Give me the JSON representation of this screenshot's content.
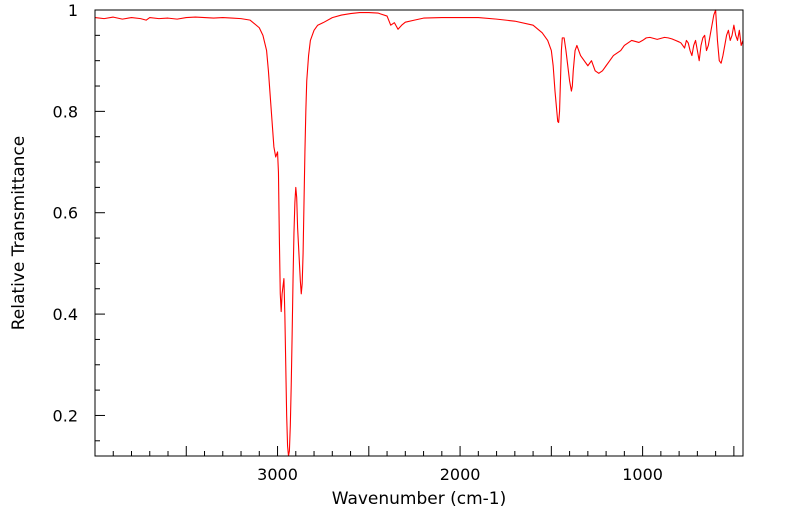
{
  "chart_data": {
    "type": "line",
    "title": "",
    "xlabel": "Wavenumber (cm-1)",
    "ylabel": "Relative Transmittance",
    "xlim": [
      4000,
      450
    ],
    "ylim": [
      0.12,
      1.0
    ],
    "x_ticks": [
      {
        "value": 3000,
        "label": "3000"
      },
      {
        "value": 2000,
        "label": "2000"
      },
      {
        "value": 1000,
        "label": "1000"
      }
    ],
    "y_ticks": [
      {
        "value": 1.0,
        "label": "1"
      },
      {
        "value": 0.8,
        "label": "0.8"
      },
      {
        "value": 0.6,
        "label": "0.6"
      },
      {
        "value": 0.4,
        "label": "0.4"
      },
      {
        "value": 0.2,
        "label": "0.2"
      }
    ],
    "grid": false,
    "legend": "none",
    "series": [
      {
        "color": "#ff0000",
        "x": [
          4000,
          3950,
          3900,
          3850,
          3800,
          3750,
          3720,
          3700,
          3650,
          3600,
          3550,
          3500,
          3450,
          3400,
          3350,
          3300,
          3250,
          3200,
          3150,
          3100,
          3080,
          3060,
          3050,
          3040,
          3030,
          3020,
          3010,
          3000,
          2995,
          2990,
          2985,
          2980,
          2975,
          2965,
          2960,
          2955,
          2950,
          2945,
          2940,
          2935,
          2930,
          2925,
          2920,
          2915,
          2910,
          2905,
          2900,
          2895,
          2890,
          2880,
          2875,
          2870,
          2865,
          2860,
          2855,
          2850,
          2845,
          2840,
          2830,
          2820,
          2800,
          2780,
          2750,
          2700,
          2650,
          2600,
          2550,
          2500,
          2450,
          2400,
          2380,
          2360,
          2340,
          2320,
          2300,
          2250,
          2200,
          2100,
          2000,
          1900,
          1800,
          1700,
          1600,
          1550,
          1520,
          1500,
          1490,
          1480,
          1470,
          1465,
          1460,
          1455,
          1450,
          1445,
          1440,
          1430,
          1420,
          1410,
          1400,
          1390,
          1385,
          1380,
          1375,
          1370,
          1360,
          1350,
          1340,
          1320,
          1300,
          1280,
          1260,
          1240,
          1220,
          1210,
          1200,
          1180,
          1160,
          1140,
          1120,
          1100,
          1080,
          1060,
          1040,
          1020,
          1000,
          980,
          960,
          940,
          920,
          900,
          880,
          860,
          840,
          820,
          800,
          790,
          780,
          770,
          760,
          750,
          740,
          730,
          720,
          710,
          700,
          690,
          680,
          670,
          660,
          650,
          640,
          630,
          620,
          610,
          600,
          590,
          580,
          570,
          560,
          550,
          540,
          530,
          520,
          510,
          500,
          490,
          480,
          470,
          460,
          450
        ],
        "y": [
          0.985,
          0.983,
          0.986,
          0.982,
          0.985,
          0.983,
          0.98,
          0.985,
          0.983,
          0.984,
          0.982,
          0.985,
          0.986,
          0.985,
          0.984,
          0.985,
          0.984,
          0.983,
          0.98,
          0.965,
          0.95,
          0.92,
          0.88,
          0.83,
          0.78,
          0.73,
          0.71,
          0.72,
          0.68,
          0.55,
          0.44,
          0.405,
          0.44,
          0.47,
          0.4,
          0.3,
          0.2,
          0.14,
          0.12,
          0.13,
          0.18,
          0.26,
          0.36,
          0.47,
          0.56,
          0.62,
          0.65,
          0.63,
          0.57,
          0.5,
          0.465,
          0.44,
          0.46,
          0.52,
          0.62,
          0.72,
          0.8,
          0.86,
          0.91,
          0.94,
          0.96,
          0.97,
          0.975,
          0.985,
          0.99,
          0.993,
          0.995,
          0.995,
          0.994,
          0.988,
          0.97,
          0.975,
          0.962,
          0.97,
          0.976,
          0.98,
          0.984,
          0.985,
          0.985,
          0.985,
          0.982,
          0.978,
          0.97,
          0.955,
          0.94,
          0.92,
          0.89,
          0.84,
          0.8,
          0.78,
          0.778,
          0.8,
          0.86,
          0.92,
          0.945,
          0.945,
          0.92,
          0.89,
          0.86,
          0.84,
          0.85,
          0.88,
          0.9,
          0.92,
          0.93,
          0.92,
          0.91,
          0.9,
          0.89,
          0.9,
          0.88,
          0.875,
          0.88,
          0.885,
          0.89,
          0.9,
          0.91,
          0.915,
          0.92,
          0.93,
          0.935,
          0.94,
          0.938,
          0.936,
          0.94,
          0.945,
          0.946,
          0.944,
          0.942,
          0.944,
          0.946,
          0.945,
          0.943,
          0.94,
          0.937,
          0.935,
          0.93,
          0.925,
          0.94,
          0.935,
          0.92,
          0.91,
          0.93,
          0.94,
          0.92,
          0.9,
          0.93,
          0.945,
          0.95,
          0.92,
          0.93,
          0.95,
          0.97,
          0.99,
          1.0,
          0.94,
          0.9,
          0.895,
          0.91,
          0.93,
          0.95,
          0.96,
          0.94,
          0.95,
          0.97,
          0.95,
          0.94,
          0.96,
          0.93,
          0.94
        ]
      }
    ]
  }
}
